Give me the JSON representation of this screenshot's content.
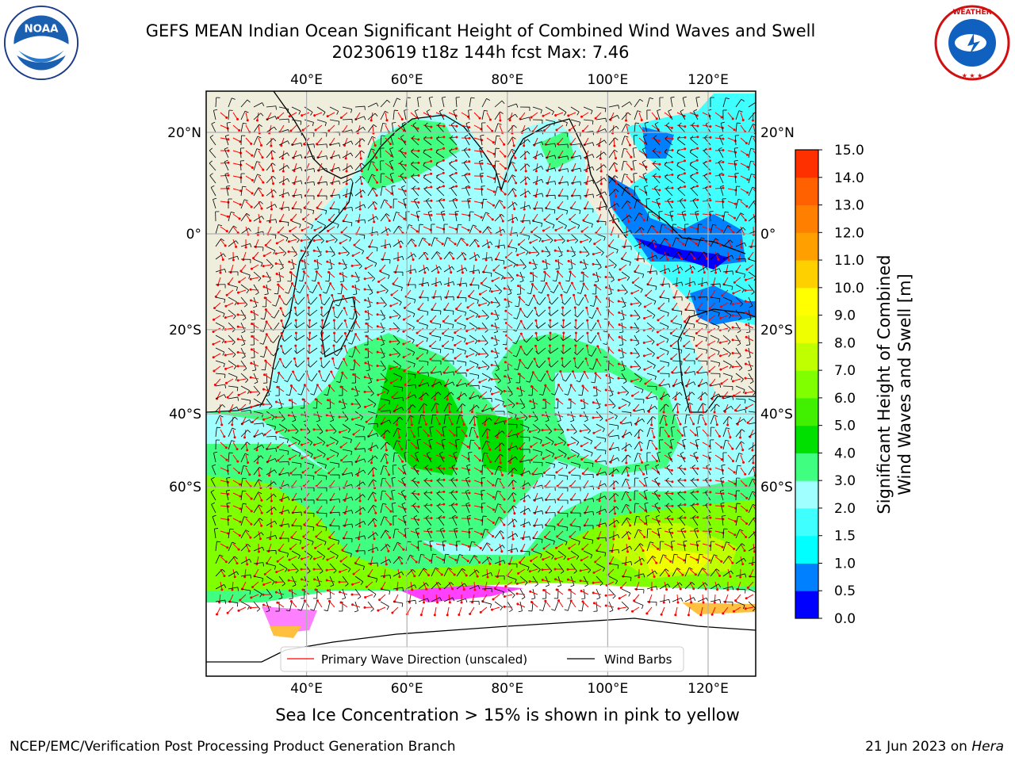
{
  "header": {
    "title_line1": "GEFS MEAN Indian Ocean Significant Height of Combined Wind Waves and Swell",
    "title_line2": "20230619 t18z 144h fcst   Max: 7.46"
  },
  "logos": {
    "noaa_text": "NOAA",
    "noaa_ring_text": "NATIONAL OCEANIC AND ATMOSPHERIC ADMINISTRATION · U.S. DEPARTMENT OF COMMERCE",
    "nws_ring_text": "NATIONAL WEATHER SERVICE"
  },
  "map": {
    "lon_labels": [
      "40°E",
      "60°E",
      "80°E",
      "100°E",
      "120°E"
    ],
    "lat_labels": [
      "20°N",
      "0°",
      "20°S",
      "40°S",
      "60°S"
    ],
    "legend": {
      "wave_label": "Primary Wave Direction (unscaled)",
      "wind_label": "Wind Barbs",
      "wave_color": "#ff0000",
      "wind_color": "#000000"
    }
  },
  "colorbar": {
    "label_line1": "Significant Height of Combined",
    "label_line2": "Wind Waves and Swell [m]",
    "ticks": [
      "15.0",
      "14.0",
      "13.0",
      "12.0",
      "11.0",
      "10.0",
      "9.0",
      "8.0",
      "7.0",
      "6.0",
      "5.0",
      "4.0",
      "3.0",
      "2.0",
      "1.5",
      "1.0",
      "0.5",
      "0.0"
    ],
    "colors": [
      "#0000ff",
      "#0080ff",
      "#00ffff",
      "#40ffff",
      "#a0ffff",
      "#40ff80",
      "#00e000",
      "#40f000",
      "#80ff00",
      "#c0ff00",
      "#f0ff00",
      "#ffff00",
      "#ffd000",
      "#ffa000",
      "#ff8000",
      "#ff6000",
      "#ff3000"
    ]
  },
  "footer": {
    "caption": "Sea Ice Concentration > 15% is shown in pink to yellow",
    "left": "NCEP/EMC/Verification Post Processing Product Generation Branch",
    "right_date": "21 Jun 2023 on ",
    "right_machine": "Hera"
  }
}
